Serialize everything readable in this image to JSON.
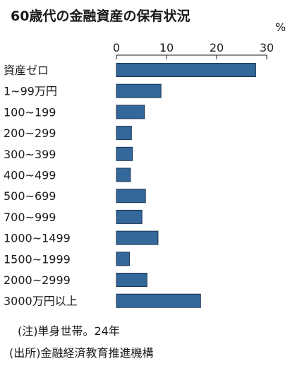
{
  "chart_data": {
    "type": "bar",
    "orientation": "horizontal",
    "title": "60歳代の金融資産の保有状況",
    "unit": "%",
    "categories": [
      "資産ゼロ",
      "1~99万円",
      "100~199",
      "200~299",
      "300~399",
      "400~499",
      "500~699",
      "700~999",
      "1000~1499",
      "1500~1999",
      "2000~2999",
      "3000万円以上"
    ],
    "values": [
      27.8,
      8.9,
      5.6,
      3.0,
      3.2,
      2.8,
      5.8,
      5.1,
      8.3,
      2.6,
      6.1,
      16.8
    ],
    "xlim": [
      0,
      30
    ],
    "ticks": [
      "0",
      "10",
      "20",
      "30"
    ],
    "tick_values": [
      0,
      10,
      20,
      30
    ],
    "grid": false,
    "bar_color": "#34679a",
    "notes": [
      "(注)単身世帯。24年",
      "(出所)金融経済教育推進機構"
    ]
  }
}
